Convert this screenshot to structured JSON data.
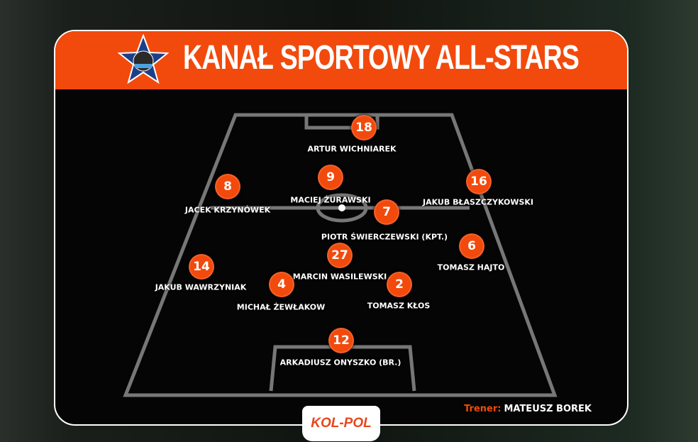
{
  "header": {
    "title": "KANAŁ SPORTOWY ALL-STARS",
    "logo_text": "KANAŁ SPORTOWY ALL-STARS"
  },
  "players": [
    {
      "number": "18",
      "name": "ARTUR WICHNIAREK"
    },
    {
      "number": "9",
      "name": "MACIEJ ŻURAWSKI"
    },
    {
      "number": "8",
      "name": "JACEK KRZYNÓWEK"
    },
    {
      "number": "16",
      "name": "JAKUB BŁASZCZYKOWSKI"
    },
    {
      "number": "7",
      "name": "PIOTR ŚWIERCZEWSKI (KPT.)"
    },
    {
      "number": "6",
      "name": "TOMASZ HAJTO"
    },
    {
      "number": "27",
      "name": "MARCIN WASILEWSKI"
    },
    {
      "number": "14",
      "name": "JAKUB WAWRZYNIAK"
    },
    {
      "number": "4",
      "name": "MICHAŁ ŻEWŁAKOW"
    },
    {
      "number": "2",
      "name": "TOMASZ KŁOS"
    },
    {
      "number": "12",
      "name": "ARKADIUSZ ONYSZKO (BR.)"
    }
  ],
  "coach": {
    "label": "Trener:",
    "name": "MATEUSZ BOREK"
  },
  "sponsor": {
    "text": "KOL-POL"
  },
  "colors": {
    "accent": "#f24a0c",
    "panel": "#050505"
  }
}
